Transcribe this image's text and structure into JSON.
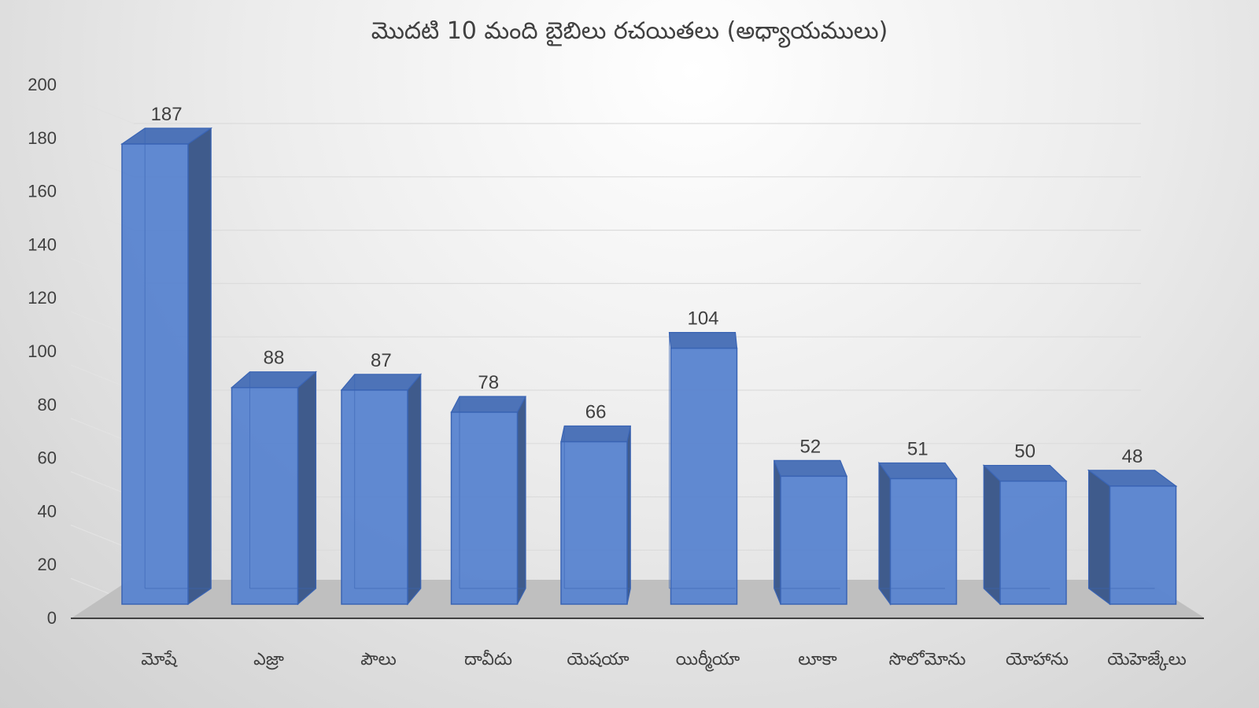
{
  "chart_data": {
    "type": "bar",
    "style": "3d-column",
    "title": "మొదటి 10 మంది బైబిలు రచయితలు (అధ్యాయములు)",
    "xlabel": "",
    "ylabel": "",
    "ylim": [
      0,
      200
    ],
    "yticks": [
      0,
      20,
      40,
      60,
      80,
      100,
      120,
      140,
      160,
      180,
      200
    ],
    "grid": true,
    "legend": null,
    "categories": [
      "మోషే",
      "ఎజ్రా",
      "పౌలు",
      "దావీదు",
      "యెషయా",
      "యిర్మీయా",
      "లూకా",
      "సొలోమోను",
      "యోహాను",
      "యెహెజ్కేలు"
    ],
    "values": [
      187,
      88,
      87,
      78,
      66,
      104,
      52,
      51,
      50,
      48
    ],
    "data_labels": [
      "187",
      "88",
      "87",
      "78",
      "66",
      "104",
      "52",
      "51",
      "50",
      "48"
    ],
    "colors": {
      "bar_front": "#5b85d0",
      "bar_side": "#3f5b8c",
      "bar_top": "#4d73b8",
      "bar_edge": "#3a64b4",
      "floor": "#bfbfbf",
      "axis_line": "#404040",
      "text": "#404040"
    }
  }
}
